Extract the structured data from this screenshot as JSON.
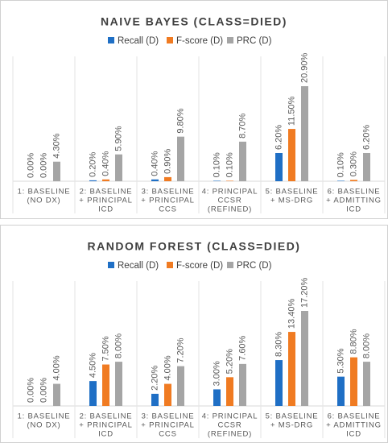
{
  "chart_data": [
    {
      "type": "bar",
      "title": "NAIVE BAYES (CLASS=DIED)",
      "categories": [
        [
          "1: BASELINE",
          "(NO DX)"
        ],
        [
          "2: BASELINE",
          "+ PRINCIPAL",
          "ICD"
        ],
        [
          "3: BASELINE",
          "+ PRINCIPAL",
          "CCS"
        ],
        [
          "4: PRINCIPAL",
          "CCSR",
          "(REFINED)"
        ],
        [
          "5: BASELINE",
          "+ MS-DRG"
        ],
        [
          "6: BASELINE",
          "+ ADMITTING",
          "ICD"
        ]
      ],
      "series": [
        {
          "name": "Recall (D)",
          "color": "#1f6fc5",
          "values": [
            0,
            0.2,
            0.4,
            0.1,
            6.2,
            0.1
          ],
          "value_labels": [
            "0.00%",
            "0.20%",
            "0.40%",
            "0.10%",
            "6.20%",
            "0.10%"
          ]
        },
        {
          "name": "F-score (D)",
          "color": "#f07b22",
          "values": [
            0,
            0.4,
            0.9,
            0.1,
            11.5,
            0.3
          ],
          "value_labels": [
            "0.00%",
            "0.40%",
            "0.90%",
            "0.10%",
            "11.50%",
            "0.30%"
          ]
        },
        {
          "name": "PRC (D)",
          "color": "#a5a5a5",
          "values": [
            4.3,
            5.9,
            9.8,
            8.7,
            20.9,
            6.2
          ],
          "value_labels": [
            "4.30%",
            "5.90%",
            "9.80%",
            "8.70%",
            "20.90%",
            "6.20%"
          ]
        }
      ],
      "legend": "top"
    },
    {
      "type": "bar",
      "title": "RANDOM FOREST (CLASS=DIED)",
      "categories": [
        [
          "1: BASELINE",
          "(NO DX)"
        ],
        [
          "2: BASELINE",
          "+ PRINCIPAL",
          "ICD"
        ],
        [
          "3: BASELINE",
          "+ PRINCIPAL",
          "CCS"
        ],
        [
          "4: PRINCIPAL",
          "CCSR",
          "(REFINED)"
        ],
        [
          "5: BASELINE",
          "+ MS-DRG"
        ],
        [
          "6: BASELINE",
          "+ ADMITTING",
          "ICD"
        ]
      ],
      "series": [
        {
          "name": "Recall (D)",
          "color": "#1f6fc5",
          "values": [
            0,
            4.5,
            2.2,
            3.0,
            8.3,
            5.3
          ],
          "value_labels": [
            "0.00%",
            "4.50%",
            "2.20%",
            "3.00%",
            "8.30%",
            "5.30%"
          ]
        },
        {
          "name": "F-score (D)",
          "color": "#f07b22",
          "values": [
            0,
            7.5,
            4.0,
            5.2,
            13.4,
            8.8
          ],
          "value_labels": [
            "0.00%",
            "7.50%",
            "4.00%",
            "5.20%",
            "13.40%",
            "8.80%"
          ]
        },
        {
          "name": "PRC (D)",
          "color": "#a5a5a5",
          "values": [
            4.0,
            8.0,
            7.2,
            7.6,
            17.2,
            8.0
          ],
          "value_labels": [
            "4.00%",
            "8.00%",
            "7.20%",
            "7.60%",
            "17.20%",
            "8.00%"
          ]
        }
      ],
      "legend": "top"
    }
  ]
}
